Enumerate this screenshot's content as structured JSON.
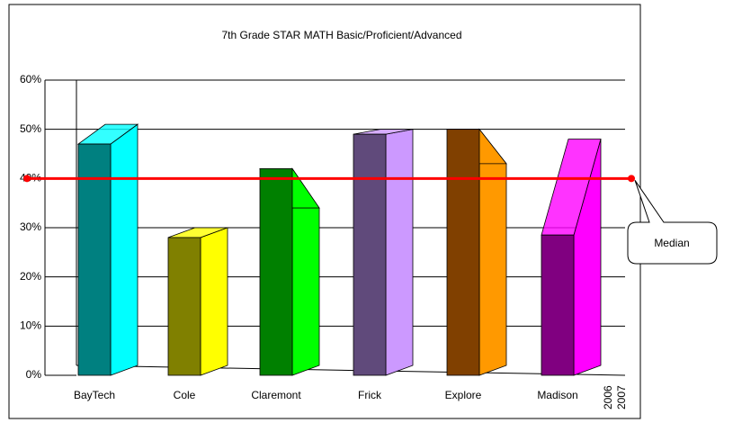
{
  "chart_data": {
    "type": "bar3d",
    "title": "7th Grade STAR MATH Basic/Proficient/Advanced",
    "categories": [
      "BayTech",
      "Cole",
      "Claremont",
      "Frick",
      "Explore",
      "Madison"
    ],
    "series": [
      {
        "name": "2006",
        "colors": [
          "#008080",
          "#808000",
          "#008000",
          "#604a7b",
          "#804000",
          "#800080"
        ],
        "values": [
          47,
          28,
          42,
          49,
          50,
          28.5
        ]
      },
      {
        "name": "2007",
        "colors": [
          "#00ffff",
          "#ffff00",
          "#00ff00",
          "#cc99ff",
          "#ff9900",
          "#ff00ff"
        ],
        "values": [
          49,
          28,
          32,
          48,
          41,
          46
        ]
      }
    ],
    "ylim": [
      0,
      60
    ],
    "yticks": [
      {
        "value": 0,
        "label": "0%"
      },
      {
        "value": 10,
        "label": "10%"
      },
      {
        "value": 20,
        "label": "20%"
      },
      {
        "value": 30,
        "label": "30%"
      },
      {
        "value": 40,
        "label": "40%"
      },
      {
        "value": 50,
        "label": "50%"
      },
      {
        "value": 60,
        "label": "60%"
      }
    ],
    "grid": true,
    "median": {
      "value": 40,
      "label": "Median",
      "color": "#ff0000"
    }
  }
}
